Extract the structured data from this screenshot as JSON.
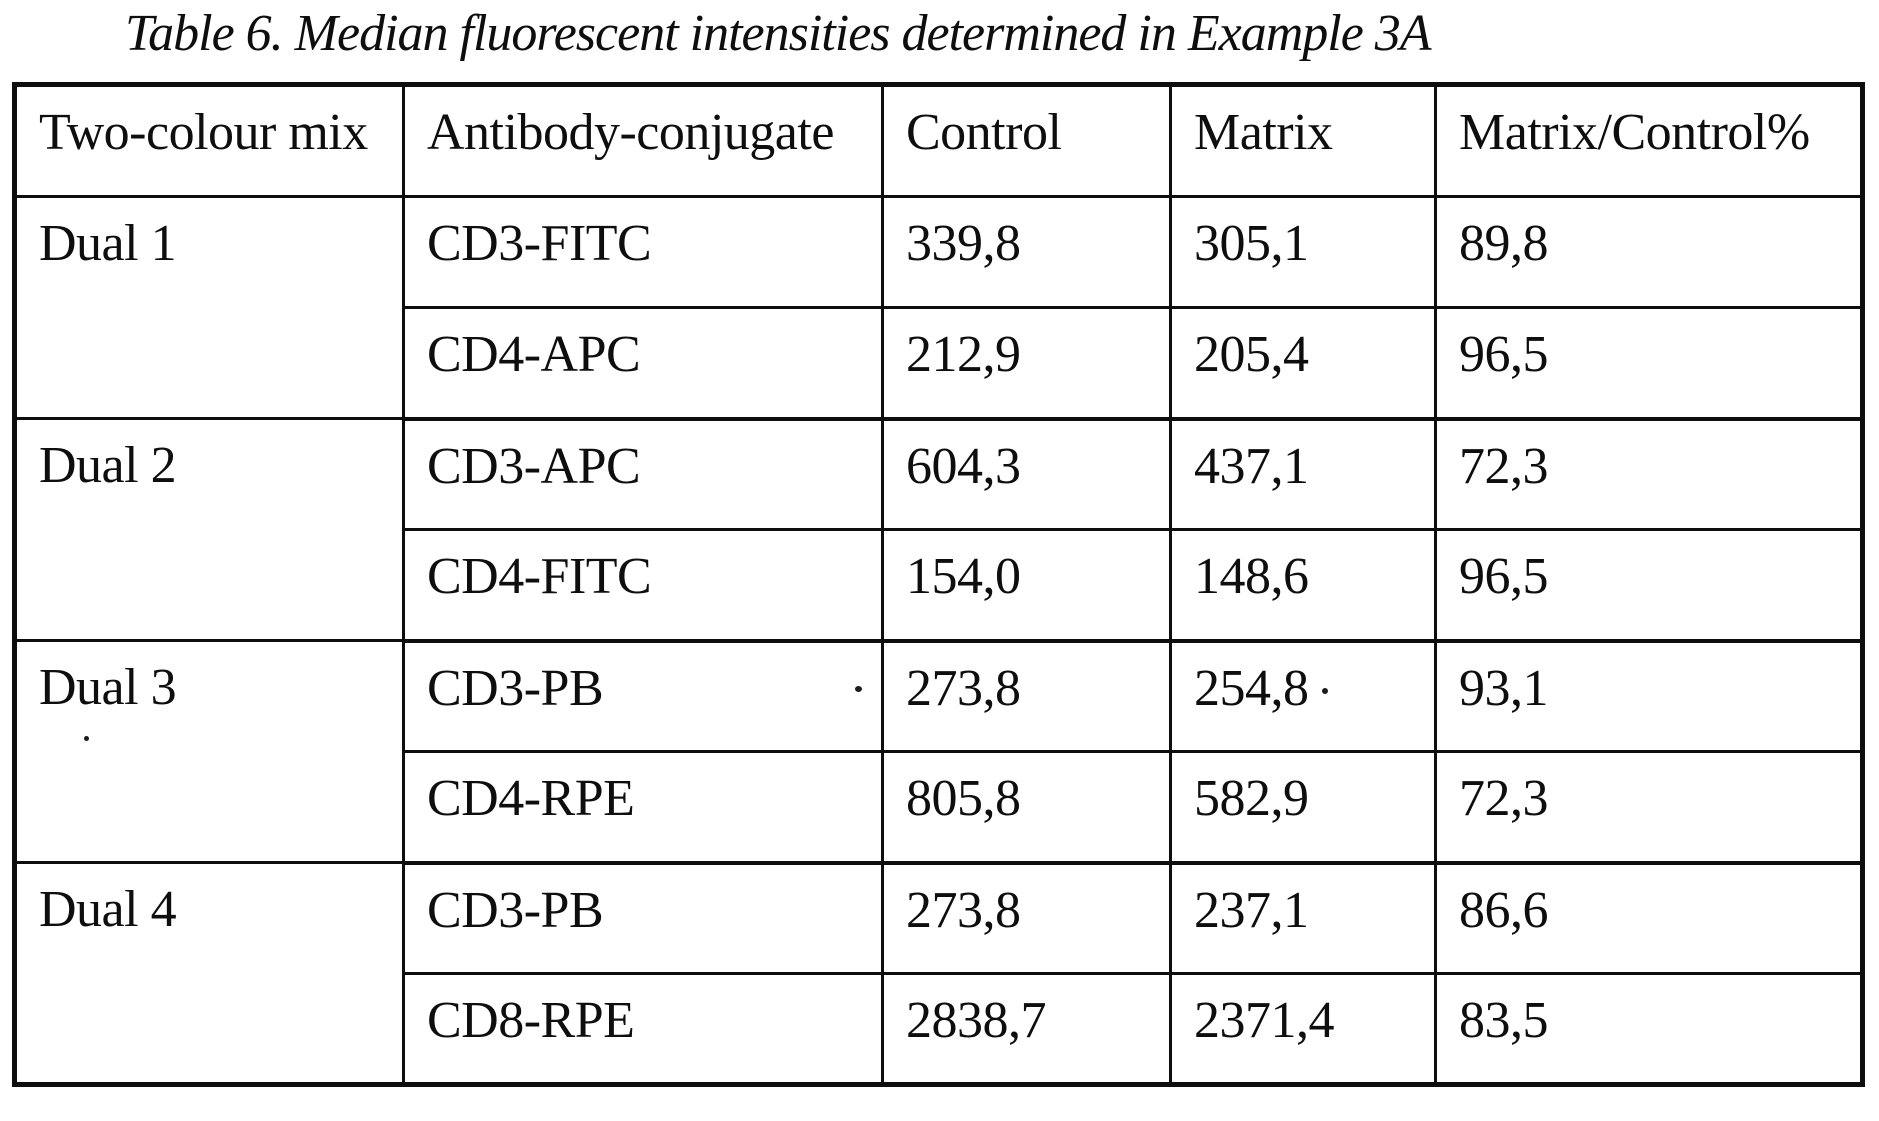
{
  "title": "Table 6. Median fluorescent intensities determined in Example 3A",
  "colors": {
    "ink": "#0e0e0e",
    "paper": "#ffffff"
  },
  "table": {
    "headers": [
      "Two-colour mix",
      "Antibody-conjugate",
      "Control",
      "Matrix",
      "Matrix/Control%"
    ],
    "groups": [
      {
        "mix": "Dual 1",
        "rows": [
          {
            "conjugate": "CD3-FITC",
            "control": "339,8",
            "matrix": "305,1",
            "ratio": "89,8"
          },
          {
            "conjugate": "CD4-APC",
            "control": "212,9",
            "matrix": "205,4",
            "ratio": "96,5"
          }
        ]
      },
      {
        "mix": "Dual 2",
        "rows": [
          {
            "conjugate": "CD3-APC",
            "control": "604,3",
            "matrix": "437,1",
            "ratio": "72,3"
          },
          {
            "conjugate": "CD4-FITC",
            "control": "154,0",
            "matrix": "148,6",
            "ratio": "96,5"
          }
        ]
      },
      {
        "mix": "Dual 3",
        "rows": [
          {
            "conjugate": "CD3-PB",
            "control": "273,8",
            "matrix": "254,8",
            "ratio": "93,1"
          },
          {
            "conjugate": "CD4-RPE",
            "control": "805,8",
            "matrix": "582,9",
            "ratio": "72,3"
          }
        ]
      },
      {
        "mix": "Dual 4",
        "rows": [
          {
            "conjugate": "CD3-PB",
            "control": "273,8",
            "matrix": "237,1",
            "ratio": "86,6"
          },
          {
            "conjugate": "CD8-RPE",
            "control": "2838,7",
            "matrix": "2371,4",
            "ratio": "83,5"
          }
        ]
      }
    ]
  }
}
